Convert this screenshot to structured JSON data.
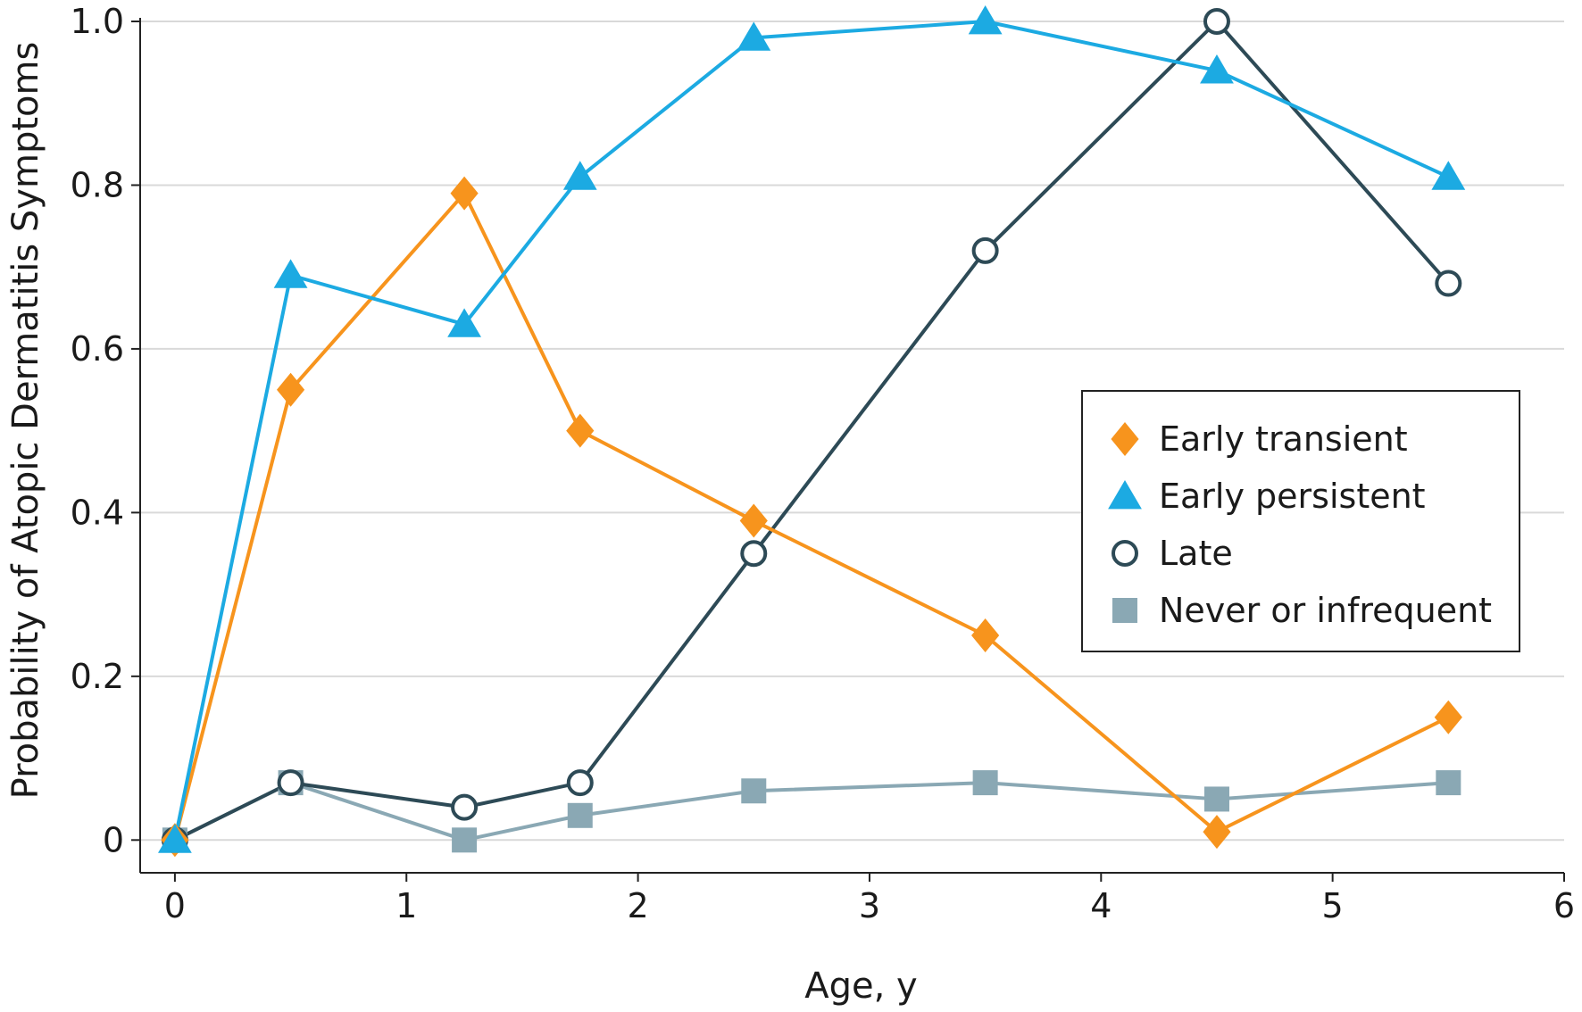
{
  "chart_data": {
    "type": "line",
    "title": "",
    "xlabel": "Age, y",
    "ylabel": "Probability of Atopic Dermatitis Symptoms",
    "xlim": [
      -0.15,
      6
    ],
    "ylim": [
      -0.04,
      1.0
    ],
    "x_ticks": [
      0,
      1,
      2,
      3,
      4,
      5,
      6
    ],
    "x_tick_labels": [
      "0",
      "1",
      "2",
      "3",
      "4",
      "5",
      "6"
    ],
    "y_ticks": [
      0,
      0.2,
      0.4,
      0.6,
      0.8,
      1.0
    ],
    "y_tick_labels": [
      "0",
      "0.2",
      "0.4",
      "0.6",
      "0.8",
      "1.0"
    ],
    "grid": "horizontal",
    "legend_position": "right-middle",
    "x": [
      0,
      0.5,
      1.25,
      1.75,
      2.5,
      3.5,
      4.5,
      5.5
    ],
    "series": [
      {
        "name": "Early transient",
        "marker": "diamond",
        "color": "#F7941D",
        "values": [
          0,
          0.55,
          0.79,
          0.5,
          0.39,
          0.25,
          0.01,
          0.15
        ]
      },
      {
        "name": "Early persistent",
        "marker": "triangle",
        "color": "#1CAAE2",
        "values": [
          0,
          0.69,
          0.63,
          0.81,
          0.98,
          1.0,
          0.94,
          0.81
        ]
      },
      {
        "name": "Late",
        "marker": "open-circle",
        "color": "#2D4A56",
        "values": [
          0,
          0.07,
          0.04,
          0.07,
          0.35,
          0.72,
          1.0,
          0.68
        ]
      },
      {
        "name": "Never or infrequent",
        "marker": "square",
        "color": "#8AA8B4",
        "values": [
          0,
          0.07,
          0,
          0.03,
          0.06,
          0.07,
          0.05,
          0.07
        ]
      }
    ]
  }
}
